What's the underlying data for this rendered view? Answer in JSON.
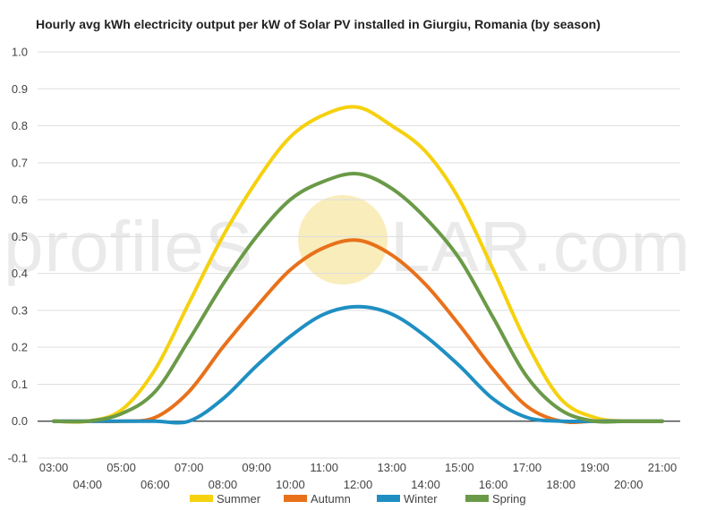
{
  "watermark": {
    "left_text": "profileS",
    "right_text": "LAR.com",
    "sun_color": "#f7e7a6"
  },
  "chart_data": {
    "type": "line",
    "title": "Hourly avg kWh electricity output per kW of Solar PV installed in Giurgiu, Romania (by season)",
    "xlabel": "",
    "ylabel": "",
    "ylim": [
      -0.1,
      1.0
    ],
    "yticks": [
      "-0.1",
      "0.0",
      "0.1",
      "0.2",
      "0.3",
      "0.4",
      "0.5",
      "0.6",
      "0.7",
      "0.8",
      "0.9",
      "1.0"
    ],
    "x": [
      "03:00",
      "04:00",
      "05:00",
      "06:00",
      "07:00",
      "08:00",
      "09:00",
      "10:00",
      "11:00",
      "12:00",
      "13:00",
      "14:00",
      "15:00",
      "16:00",
      "17:00",
      "18:00",
      "19:00",
      "20:00",
      "21:00"
    ],
    "grid": true,
    "legend_position": "bottom",
    "series": [
      {
        "name": "Summer",
        "color": "#f5d10f",
        "values": [
          0.0,
          0.0,
          0.03,
          0.14,
          0.32,
          0.5,
          0.65,
          0.77,
          0.83,
          0.85,
          0.8,
          0.73,
          0.6,
          0.41,
          0.21,
          0.06,
          0.01,
          0.0,
          0.0
        ]
      },
      {
        "name": "Autumn",
        "color": "#e8711a",
        "values": [
          0.0,
          0.0,
          0.0,
          0.01,
          0.08,
          0.2,
          0.31,
          0.41,
          0.47,
          0.49,
          0.45,
          0.37,
          0.26,
          0.14,
          0.04,
          0.0,
          0.0,
          0.0,
          0.0
        ]
      },
      {
        "name": "Winter",
        "color": "#1f8fc2",
        "values": [
          0.0,
          0.0,
          0.0,
          0.0,
          0.0,
          0.06,
          0.15,
          0.23,
          0.29,
          0.31,
          0.29,
          0.23,
          0.15,
          0.06,
          0.01,
          0.0,
          0.0,
          0.0,
          0.0
        ]
      },
      {
        "name": "Spring",
        "color": "#6a9a47",
        "values": [
          0.0,
          0.0,
          0.02,
          0.08,
          0.22,
          0.37,
          0.5,
          0.6,
          0.65,
          0.67,
          0.63,
          0.55,
          0.44,
          0.28,
          0.12,
          0.03,
          0.0,
          0.0,
          0.0
        ]
      }
    ]
  }
}
